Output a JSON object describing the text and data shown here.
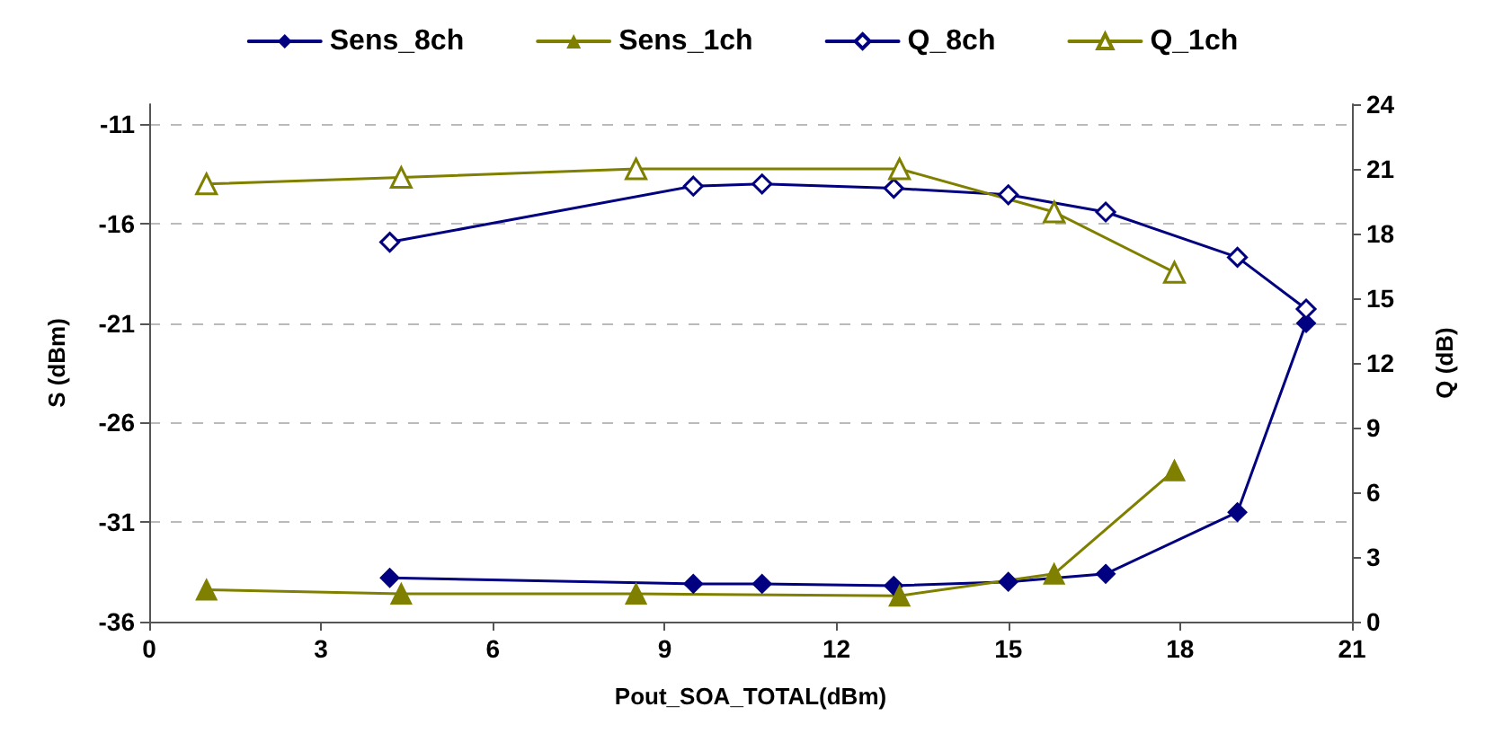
{
  "chart_data": {
    "type": "line",
    "xlabel": "Pout_SOA_TOTAL(dBm)",
    "ylabel": "S (dBm)",
    "y2label": "Q (dB)",
    "xlim": [
      0,
      21
    ],
    "xticks": [
      0,
      3,
      6,
      9,
      12,
      15,
      18,
      21
    ],
    "ylim": [
      -36,
      -10
    ],
    "yticks": [
      -36,
      -31,
      -26,
      -21,
      -16,
      -11
    ],
    "y2lim": [
      0,
      24
    ],
    "y2ticks": [
      0,
      3,
      6,
      9,
      12,
      15,
      18,
      21,
      24
    ],
    "grid": "y",
    "legend": "top",
    "line_style": "solid",
    "series": [
      {
        "name": "Sens_8ch",
        "color": "#000080",
        "marker": "diamond",
        "x": [
          4.2,
          9.5,
          10.7,
          13.0,
          15.0,
          16.7,
          19.0,
          20.2
        ],
        "values": [
          -33.8,
          -34.1,
          -34.1,
          -34.2,
          -34.0,
          -33.6,
          -30.5,
          -21.0
        ]
      },
      {
        "name": "Sens_1ch",
        "color": "#808000",
        "marker": "triangle",
        "x": [
          1.0,
          4.4,
          8.5,
          13.1,
          15.8,
          17.9
        ],
        "values": [
          -34.4,
          -34.6,
          -34.6,
          -34.7,
          -33.6,
          -28.4
        ]
      },
      {
        "name": "Q_8ch",
        "color": "#000080",
        "marker": "diamond",
        "axis": "y2",
        "x": [
          4.2,
          9.5,
          10.7,
          13.0,
          15.0,
          16.7,
          19.0,
          20.2
        ],
        "values": [
          17.6,
          20.2,
          20.3,
          20.1,
          19.8,
          19.0,
          16.9,
          14.5
        ]
      },
      {
        "name": "Q_1ch",
        "color": "#808000",
        "marker": "triangle",
        "axis": "y2",
        "x": [
          1.0,
          4.4,
          8.5,
          13.1,
          15.8,
          17.9
        ],
        "values": [
          20.3,
          20.6,
          21.0,
          21.0,
          19.0,
          16.2
        ]
      }
    ]
  }
}
